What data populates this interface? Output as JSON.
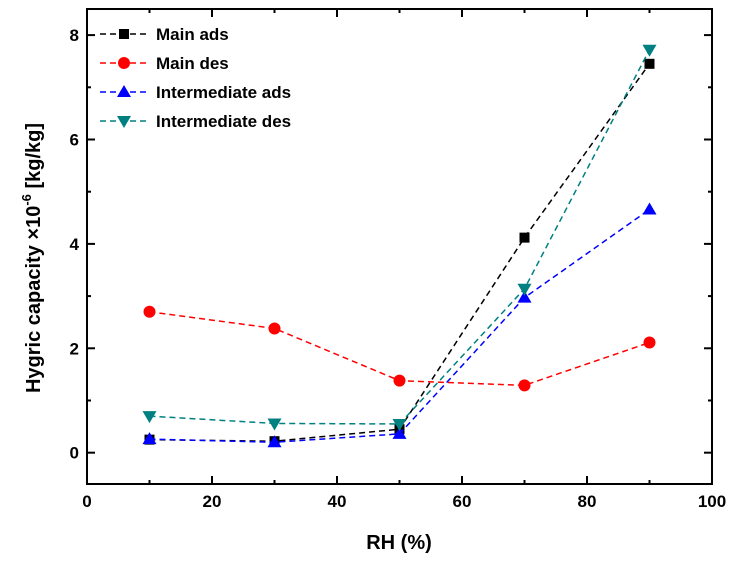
{
  "chart_data": {
    "type": "line",
    "xlabel": "RH (%)",
    "ylabel": {
      "prefix": "Hygric capacity ×10",
      "exponent": "-6",
      "suffix": " [kg/kg]"
    },
    "xlim": [
      0,
      100
    ],
    "ylim": [
      -0.6,
      8.5
    ],
    "x_ticks": [
      0,
      20,
      40,
      60,
      80,
      100
    ],
    "y_ticks": [
      0,
      2,
      4,
      6,
      8
    ],
    "grid": false,
    "legend_position": "top-left",
    "series": [
      {
        "name": "Main ads",
        "color": "#000000",
        "marker": "square",
        "x": [
          10,
          30,
          50,
          70,
          90
        ],
        "y": [
          0.25,
          0.22,
          0.45,
          4.12,
          7.45
        ]
      },
      {
        "name": "Main des",
        "color": "#ff0000",
        "marker": "circle",
        "x": [
          10,
          30,
          50,
          70,
          90
        ],
        "y": [
          2.7,
          2.38,
          1.38,
          1.29,
          2.11
        ]
      },
      {
        "name": "Intermediate ads",
        "color": "#0000ff",
        "marker": "triangle-up",
        "x": [
          10,
          30,
          50,
          70,
          90
        ],
        "y": [
          0.26,
          0.2,
          0.36,
          2.97,
          4.66
        ]
      },
      {
        "name": "Intermediate des",
        "color": "#008080",
        "marker": "triangle-down",
        "x": [
          10,
          30,
          50,
          70,
          90
        ],
        "y": [
          0.7,
          0.56,
          0.55,
          3.14,
          7.72
        ]
      }
    ]
  }
}
